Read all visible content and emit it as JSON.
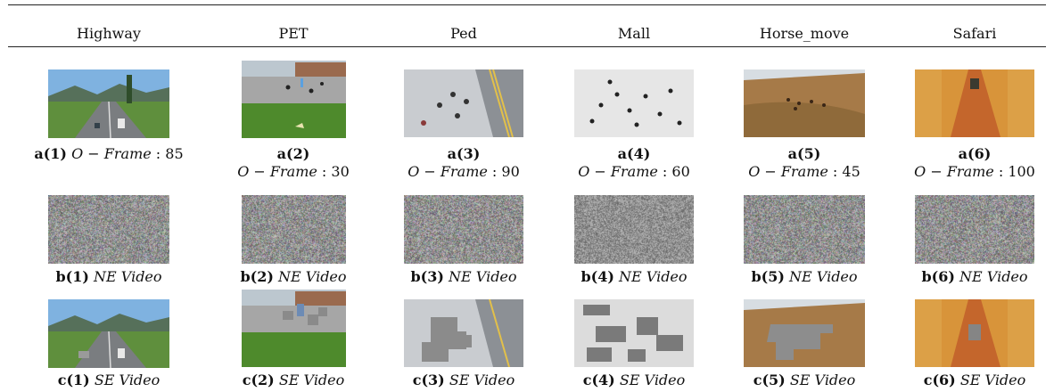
{
  "columns": [
    "Highway",
    "PET",
    "Ped",
    "Mall",
    "Horse_move",
    "Safari"
  ],
  "row_a": [
    {
      "label": "a(1)",
      "math": "O − Frame",
      "value": "85"
    },
    {
      "label": "a(2)",
      "math": "O − Frame",
      "value": "30"
    },
    {
      "label": "a(3)",
      "math": "O − Frame",
      "value": "90"
    },
    {
      "label": "a(4)",
      "math": "O − Frame",
      "value": "60"
    },
    {
      "label": "a(5)",
      "math": "O − Frame",
      "value": "45"
    },
    {
      "label": "a(6)",
      "math": "O − Frame",
      "value": "100"
    }
  ],
  "row_b": [
    {
      "label": "b(1)",
      "text": "NE Video"
    },
    {
      "label": "b(2)",
      "text": "NE Video"
    },
    {
      "label": "b(3)",
      "text": "NE Video"
    },
    {
      "label": "b(4)",
      "text": "NE Video"
    },
    {
      "label": "b(5)",
      "text": "NE Video"
    },
    {
      "label": "b(6)",
      "text": "NE Video"
    }
  ],
  "row_c": [
    {
      "label": "c(1)",
      "text": "SE Video"
    },
    {
      "label": "c(2)",
      "text": "SE Video"
    },
    {
      "label": "c(3)",
      "text": "SE Video"
    },
    {
      "label": "c(4)",
      "text": "SE Video"
    },
    {
      "label": "c(5)",
      "text": "SE Video"
    },
    {
      "label": "c(6)",
      "text": "SE Video"
    }
  ],
  "colors": {
    "rule": "#222222",
    "noise_base": "#8a8f8c"
  }
}
